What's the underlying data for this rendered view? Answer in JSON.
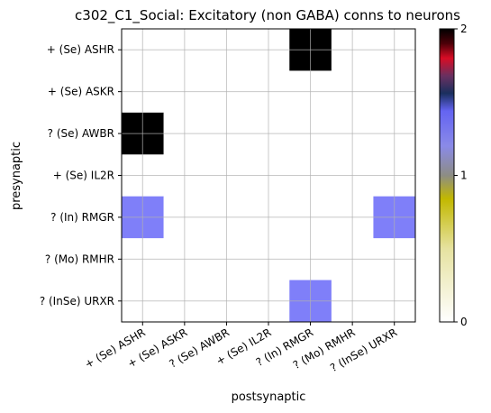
{
  "chart_data": {
    "type": "heatmap",
    "title": "c302_C1_Social: Excitatory (non GABA) conns to neurons",
    "xlabel": "postsynaptic",
    "ylabel": "presynaptic",
    "rows": [
      "+ (Se) ASHR",
      "+ (Se) ASKR",
      "? (Se) AWBR",
      "+ (Se) IL2R",
      "? (In) RMGR",
      "? (Mo) RMHR",
      "? (InSe) URXR"
    ],
    "columns": [
      "+ (Se) ASHR",
      "+ (Se) ASKR",
      "? (Se) AWBR",
      "+ (Se) IL2R",
      "? (In) RMGR",
      "? (Mo) RMHR",
      "? (InSe) URXR"
    ],
    "values": [
      [
        0,
        0,
        0,
        0,
        2,
        0,
        0
      ],
      [
        0,
        0,
        0,
        0,
        0,
        0,
        0
      ],
      [
        2,
        0,
        0,
        0,
        0,
        0,
        0
      ],
      [
        0,
        0,
        0,
        0,
        0,
        0,
        0
      ],
      [
        1,
        0,
        0,
        0,
        0,
        0,
        1
      ],
      [
        0,
        0,
        0,
        0,
        0,
        0,
        0
      ],
      [
        0,
        0,
        0,
        0,
        1,
        0,
        0
      ]
    ],
    "colorbar": {
      "range": [
        0,
        2
      ],
      "ticks": [
        "0",
        "1",
        "2"
      ],
      "colormap": "gist_stern_r",
      "stops": [
        {
          "v": 0.0,
          "c": "#ffffff"
        },
        {
          "v": 0.25,
          "c": "#e6e2a0"
        },
        {
          "v": 0.42,
          "c": "#c2b800"
        },
        {
          "v": 0.5,
          "c": "#8d8d84"
        },
        {
          "v": 0.6,
          "c": "#8a8ae8"
        },
        {
          "v": 0.72,
          "c": "#6464f2"
        },
        {
          "v": 0.78,
          "c": "#1a2f5e"
        },
        {
          "v": 0.84,
          "c": "#6a3060"
        },
        {
          "v": 0.9,
          "c": "#d80c25"
        },
        {
          "v": 0.95,
          "c": "#4c0008"
        },
        {
          "v": 1.0,
          "c": "#000000"
        }
      ]
    },
    "cell_colors": {
      "0": "#ffffff",
      "1": "#7f7ff9",
      "2": "#000000"
    },
    "grid": true
  }
}
